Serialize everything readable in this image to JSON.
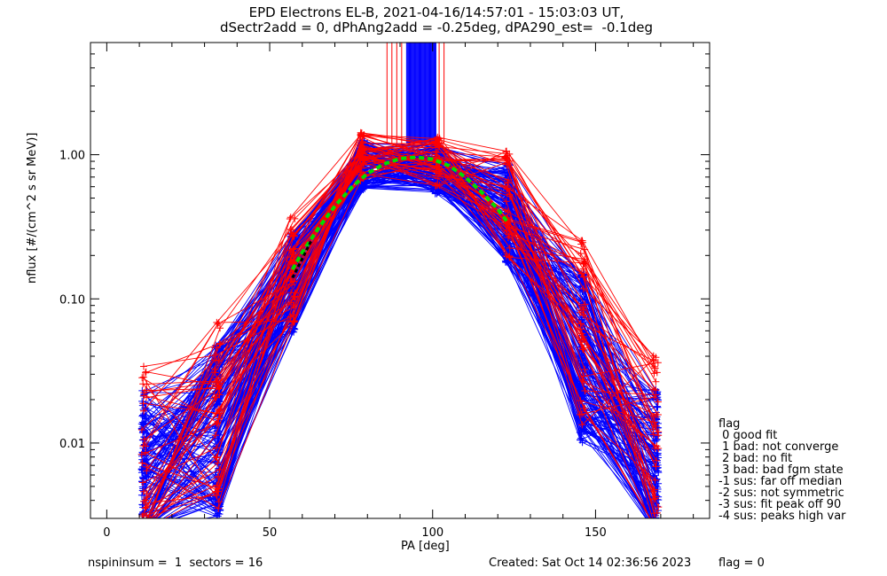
{
  "title_line1": "EPD Electrons EL-B, 2021-04-16/14:57:01 - 15:03:03 UT,",
  "title_line2": "dSectr2add = 0, dPhAng2add = -0.25deg, dPA290_est=  -0.1deg",
  "footer": {
    "left": "nspininsum =  1  sectors = 16",
    "created": "Created: Sat Oct 14 02:36:56 2023",
    "flag": "flag = 0"
  },
  "legend": {
    "title": "flag",
    "items": [
      " 0 good fit",
      " 1 bad: not converge",
      " 2 bad: no fit",
      " 3 bad: bad fgm state",
      "-1 sus: far off median",
      "-2 sus: not symmetric",
      "-3 sus: fit peak off 90",
      "-4 sus: peaks high var"
    ]
  },
  "colors": {
    "blue": "#0000ff",
    "red": "#ff0000",
    "green": "#00dd00",
    "black": "#000000"
  },
  "chart_data": {
    "type": "line",
    "xlabel": "PA [deg]",
    "ylabel": "nflux [#/(cm^2 s sr MeV)]",
    "xlim": [
      -5,
      185
    ],
    "ylim": [
      0.003,
      6
    ],
    "ylog": true,
    "xticks": [
      0,
      50,
      100,
      150
    ],
    "yticks": [
      0.01,
      0.1,
      1.0
    ],
    "ytick_labels": [
      "0.01",
      "0.10",
      "1.00"
    ],
    "pa_bins": [
      11.5,
      34,
      57,
      78.5,
      101.5,
      123,
      146,
      168.5
    ],
    "series": [
      {
        "color": "blue",
        "count": 150,
        "values": [
          0.006,
          0.012,
          0.13,
          0.85,
          0.8,
          0.4,
          0.04,
          0.006
        ]
      },
      {
        "color": "red",
        "count": 45,
        "values": [
          0.008,
          0.016,
          0.16,
          0.95,
          0.9,
          0.45,
          0.06,
          0.009
        ]
      }
    ],
    "fit_curve": {
      "color": "green",
      "style": "dashed",
      "x": [
        57,
        60,
        65,
        70,
        75,
        80,
        85,
        90,
        95,
        100,
        105,
        110,
        115,
        120,
        123
      ],
      "y": [
        0.16,
        0.21,
        0.31,
        0.44,
        0.59,
        0.74,
        0.86,
        0.94,
        0.96,
        0.93,
        0.84,
        0.7,
        0.55,
        0.42,
        0.34
      ]
    },
    "fit_curve_black": {
      "color": "black",
      "x": [
        57,
        60,
        63
      ],
      "y": [
        0.14,
        0.19,
        0.26
      ]
    },
    "saturated_band": {
      "x": [
        92,
        101
      ],
      "y_from": 1.2,
      "y_to": 6
    }
  }
}
